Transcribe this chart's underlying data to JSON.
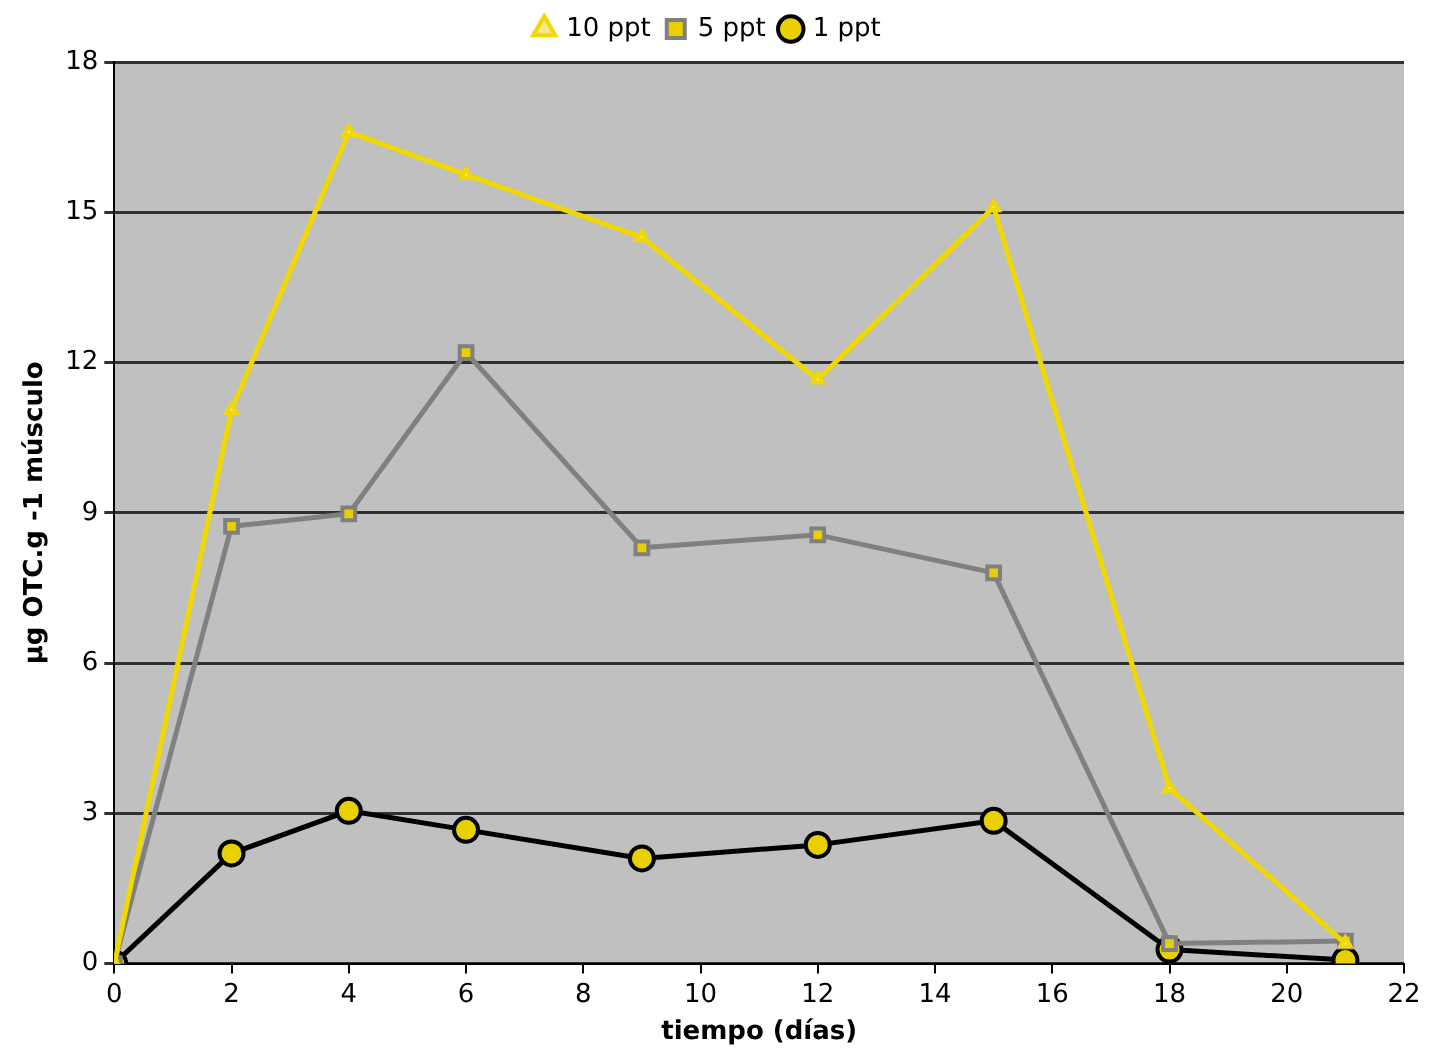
{
  "chart_data": {
    "type": "line",
    "xlabel": "tiempo (días)",
    "ylabel": "µg OTC.g -1 músculo",
    "x": [
      0,
      2,
      4,
      6,
      9,
      12,
      15,
      18,
      21
    ],
    "xlim": [
      0,
      22
    ],
    "xticks": [
      0,
      2,
      4,
      6,
      8,
      10,
      12,
      14,
      16,
      18,
      20,
      22
    ],
    "ylim": [
      0,
      18
    ],
    "yticks": [
      0,
      3,
      6,
      9,
      12,
      15,
      18
    ],
    "grid": "y",
    "legend": "top",
    "series": [
      {
        "name": "1 ppt",
        "color": "#000000",
        "marker": "circle",
        "values": [
          0,
          2.2,
          3.05,
          2.67,
          2.1,
          2.37,
          2.85,
          0.28,
          0.07
        ]
      },
      {
        "name": "5 ppt",
        "color": "#808080",
        "marker": "square",
        "values": [
          0,
          8.73,
          8.98,
          12.2,
          8.3,
          8.56,
          7.8,
          0.4,
          0.45
        ]
      },
      {
        "name": "10 ppt",
        "color": "#f0d800",
        "marker": "triangle",
        "values": [
          0,
          11.05,
          16.6,
          15.75,
          14.5,
          11.66,
          15.1,
          3.5,
          0.4
        ]
      }
    ]
  }
}
